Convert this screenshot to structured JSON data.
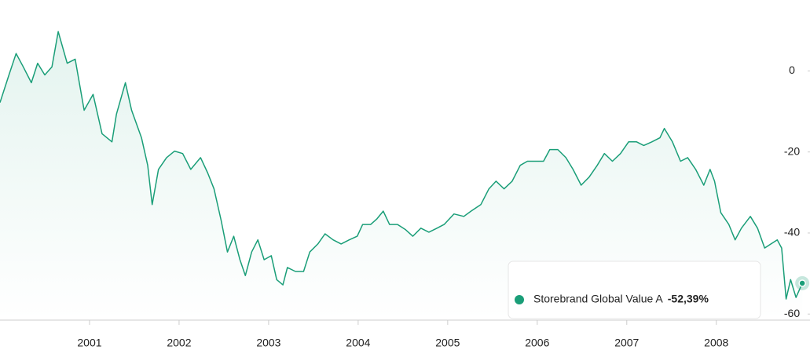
{
  "chart_data": {
    "type": "line",
    "x": [
      2000.0,
      2000.1,
      2000.18,
      2000.26,
      2000.35,
      2000.42,
      2000.5,
      2000.58,
      2000.65,
      2000.75,
      2000.84,
      2000.94,
      2001.04,
      2001.14,
      2001.25,
      2001.3,
      2001.4,
      2001.47,
      2001.58,
      2001.65,
      2001.7,
      2001.77,
      2001.86,
      2001.95,
      2002.04,
      2002.13,
      2002.24,
      2002.32,
      2002.39,
      2002.47,
      2002.54,
      2002.61,
      2002.68,
      2002.74,
      2002.81,
      2002.88,
      2002.95,
      2003.03,
      2003.09,
      2003.16,
      2003.21,
      2003.3,
      2003.39,
      2003.46,
      2003.55,
      2003.63,
      2003.72,
      2003.81,
      2003.9,
      2003.99,
      2004.05,
      2004.14,
      2004.21,
      2004.28,
      2004.35,
      2004.44,
      2004.53,
      2004.61,
      2004.7,
      2004.79,
      2004.88,
      2004.96,
      2005.07,
      2005.18,
      2005.26,
      2005.37,
      2005.46,
      2005.54,
      2005.63,
      2005.72,
      2005.81,
      2005.89,
      2005.98,
      2006.07,
      2006.14,
      2006.23,
      2006.32,
      2006.4,
      2006.49,
      2006.58,
      2006.67,
      2006.75,
      2006.84,
      2006.93,
      2007.02,
      2007.11,
      2007.19,
      2007.28,
      2007.37,
      2007.42,
      2007.51,
      2007.6,
      2007.68,
      2007.77,
      2007.86,
      2007.93,
      2007.98,
      2008.05,
      2008.14,
      2008.21,
      2008.28,
      2008.38,
      2008.46,
      2008.54,
      2008.61,
      2008.68,
      2008.73,
      2008.78,
      2008.83,
      2008.89,
      2008.96
    ],
    "series": [
      {
        "name": "Storebrand Global Value A",
        "color": "#1a9e78",
        "values": [
          -7.8,
          -1,
          4.3,
          1,
          -2.9,
          1.9,
          -1,
          1,
          9.7,
          1.9,
          2.9,
          -9.7,
          -5.8,
          -15.5,
          -17.5,
          -10.7,
          -2.9,
          -9.7,
          -16.5,
          -23.3,
          -33,
          -24.3,
          -21.4,
          -19.8,
          -20.4,
          -24.3,
          -21.4,
          -25.2,
          -29.1,
          -36.9,
          -44.7,
          -40.8,
          -46.6,
          -50.5,
          -44.7,
          -41.7,
          -46.6,
          -45.6,
          -51.5,
          -52.8,
          -48.5,
          -49.5,
          -49.5,
          -44.7,
          -42.7,
          -40.2,
          -41.7,
          -42.7,
          -41.7,
          -40.8,
          -37.9,
          -37.9,
          -36.5,
          -34.6,
          -37.9,
          -37.9,
          -39.2,
          -40.8,
          -38.8,
          -39.8,
          -38.8,
          -37.9,
          -35.3,
          -35.9,
          -34.6,
          -33,
          -29.1,
          -27.2,
          -29.1,
          -27.2,
          -23.3,
          -22.3,
          -22.3,
          -22.3,
          -19.4,
          -19.4,
          -21.4,
          -24.3,
          -28.2,
          -26.2,
          -23.3,
          -20.4,
          -22.3,
          -20.4,
          -17.5,
          -17.5,
          -18.4,
          -17.5,
          -16.5,
          -14.2,
          -17.5,
          -22.3,
          -21.4,
          -24.3,
          -28.2,
          -24.3,
          -27.2,
          -35,
          -37.9,
          -41.7,
          -38.8,
          -35.9,
          -38.8,
          -43.7,
          -42.7,
          -41.7,
          -43.7,
          -56.3,
          -51.5,
          -55.9,
          -52.39
        ]
      }
    ],
    "xlim": [
      2000,
      2009.02
    ],
    "xticks": [
      2001,
      2002,
      2003,
      2004,
      2005,
      2006,
      2007,
      2008
    ],
    "ylim": [
      -61.5,
      17.5
    ],
    "yticks": [
      0,
      -20,
      -40,
      -60
    ],
    "tooltip": {
      "value": -52.39,
      "label": "-52,39%"
    }
  }
}
